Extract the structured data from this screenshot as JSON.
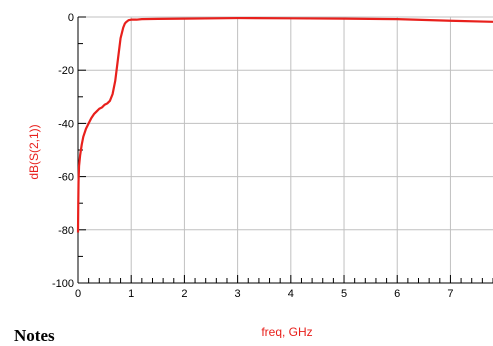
{
  "chart_data": {
    "type": "line",
    "title": "",
    "xlabel": "freq, GHz",
    "ylabel": "dB(S(2,1))",
    "xlim": [
      0,
      7.8
    ],
    "ylim": [
      -100,
      0
    ],
    "x_ticks": [
      0,
      1,
      2,
      3,
      4,
      5,
      6,
      7
    ],
    "x_tick_labels": [
      "0",
      "1",
      "2",
      "3",
      "4",
      "5",
      "6",
      "7"
    ],
    "y_ticks": [
      -100,
      -80,
      -60,
      -40,
      -20,
      0
    ],
    "y_tick_labels": [
      "-100",
      "-80",
      "-60",
      "-40",
      "-20",
      "0"
    ],
    "grid": true,
    "series": [
      {
        "name": "",
        "color": "#e8201c",
        "x": [
          0.0,
          0.005,
          0.01,
          0.02,
          0.04,
          0.07,
          0.1,
          0.15,
          0.2,
          0.25,
          0.3,
          0.35,
          0.4,
          0.45,
          0.5,
          0.55,
          0.6,
          0.65,
          0.7,
          0.75,
          0.8,
          0.85,
          0.88,
          0.9,
          0.95,
          1.0,
          1.1,
          1.2,
          1.5,
          2.0,
          3.0,
          4.0,
          5.0,
          6.0,
          7.0,
          7.8
        ],
        "y": [
          -81,
          -70,
          -62,
          -56,
          -52,
          -48,
          -45,
          -42,
          -40,
          -38,
          -36.5,
          -35.5,
          -34.5,
          -34,
          -33,
          -32.5,
          -31.5,
          -29,
          -24,
          -16,
          -8,
          -4,
          -2.5,
          -2,
          -1.2,
          -1,
          -1,
          -0.8,
          -0.7,
          -0.6,
          -0.4,
          -0.5,
          -0.6,
          -0.8,
          -1.4,
          -1.8
        ]
      }
    ]
  },
  "notes": {
    "label": "Notes"
  }
}
